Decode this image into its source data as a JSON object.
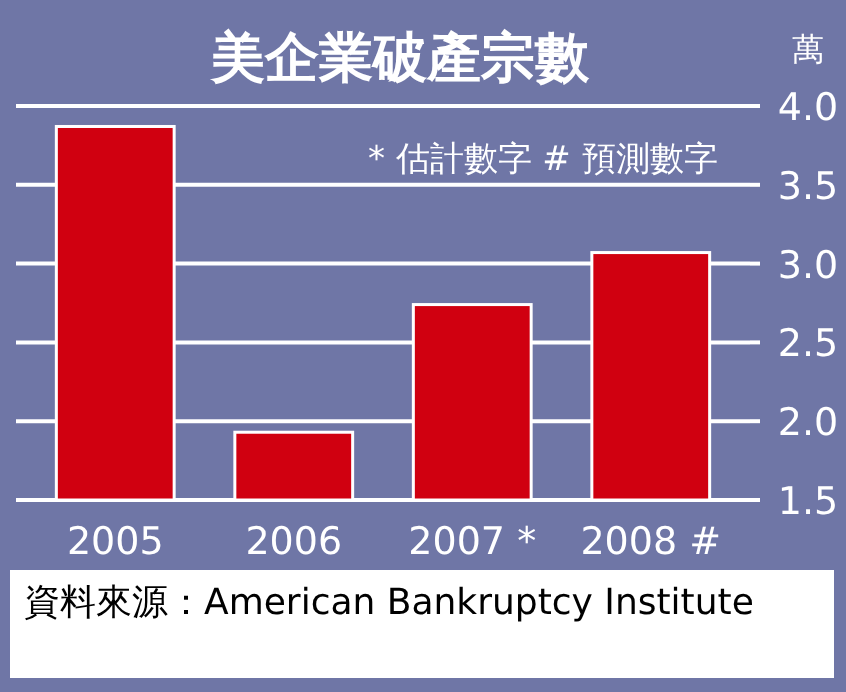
{
  "chart_data": {
    "type": "bar",
    "title": "美企業破產宗數",
    "ylabel": "萬",
    "categories": [
      "2005",
      "2006",
      "2007 *",
      "2008 #"
    ],
    "values": [
      3.87,
      1.93,
      2.74,
      3.07
    ],
    "color": "#d00010",
    "ylim": [
      1.5,
      4.0
    ],
    "yticks": [
      1.5,
      {
        "value": 2,
        "label": "2.0"
      },
      2.5,
      {
        "value": 3,
        "label": "3.0"
      },
      3.5,
      {
        "value": 4,
        "label": "4.0"
      }
    ],
    "grid": "y",
    "annotations": [
      "* 估計數字",
      "# 預測數字",
      "資料來源：American Bankruptcy Institute"
    ]
  }
}
